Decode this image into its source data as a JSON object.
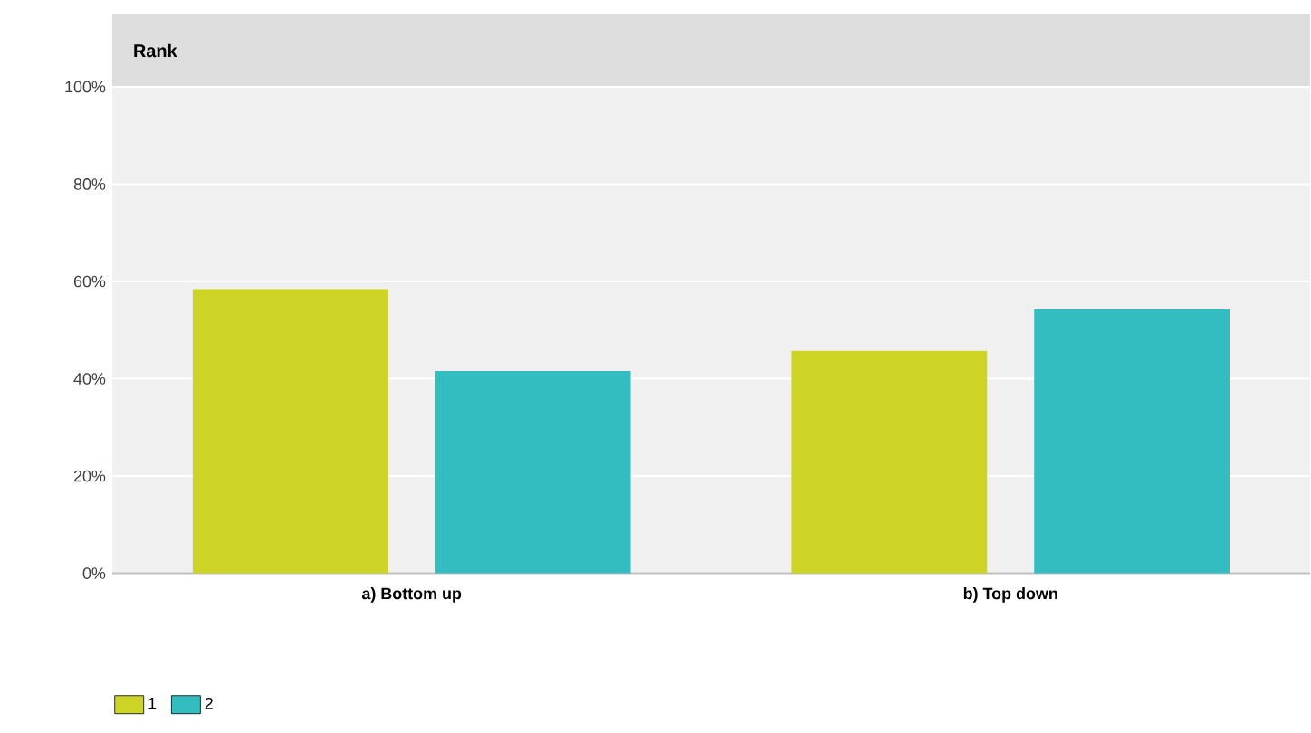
{
  "chart_data": {
    "type": "bar",
    "title": "Rank",
    "categories": [
      "a) Bottom up",
      "b) Top down"
    ],
    "series": [
      {
        "name": "1",
        "color": "#cdd425",
        "values": [
          58.4,
          45.7
        ]
      },
      {
        "name": "2",
        "color": "#33bdc0",
        "values": [
          41.6,
          54.3
        ]
      }
    ],
    "ylim": [
      0,
      100
    ],
    "yticks": [
      {
        "value": 0,
        "label": "0%"
      },
      {
        "value": 20,
        "label": "20%"
      },
      {
        "value": 40,
        "label": "40%"
      },
      {
        "value": 60,
        "label": "60%"
      },
      {
        "value": 80,
        "label": "80%"
      },
      {
        "value": 100,
        "label": "100%"
      }
    ],
    "grid": "y",
    "legend": "bottom left"
  }
}
